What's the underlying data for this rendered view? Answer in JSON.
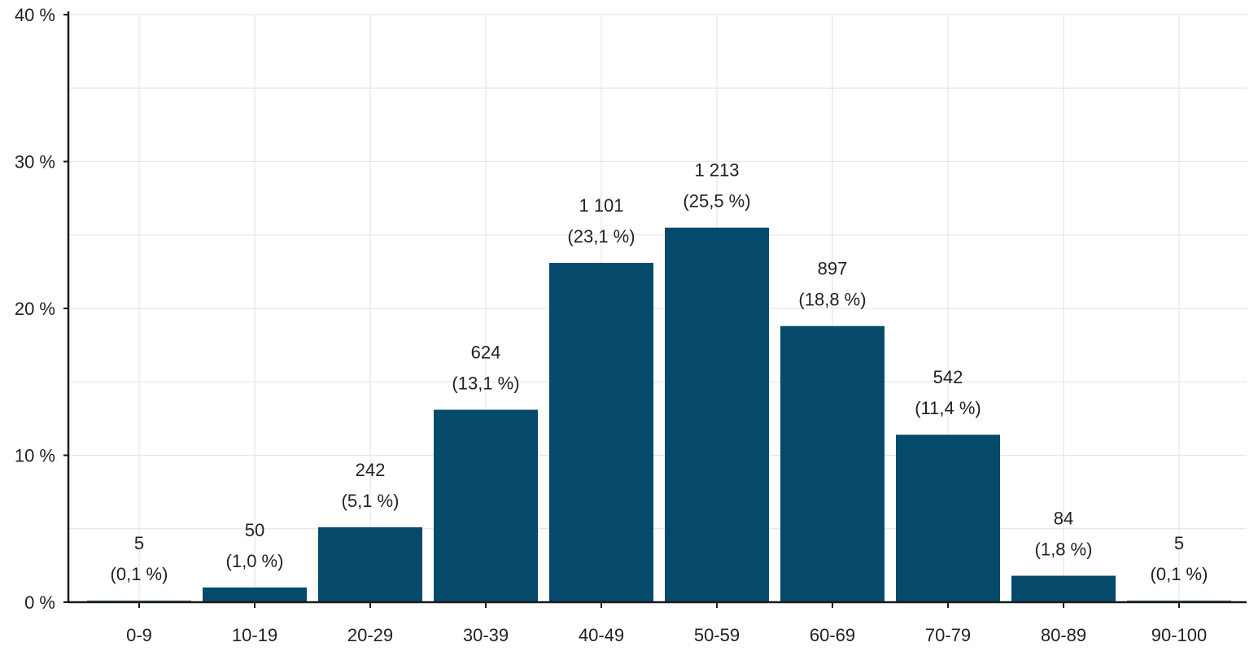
{
  "chart_data": {
    "type": "bar",
    "title": "",
    "xlabel": "",
    "ylabel": "",
    "categories": [
      "0-9",
      "10-19",
      "20-29",
      "30-39",
      "40-49",
      "50-59",
      "60-69",
      "70-79",
      "80-89",
      "90-100"
    ],
    "values": [
      0.1,
      1.0,
      5.1,
      13.1,
      23.1,
      25.5,
      18.8,
      11.4,
      1.8,
      0.1
    ],
    "counts": [
      "5",
      "50",
      "242",
      "624",
      "1 101",
      "1 213",
      "897",
      "542",
      "84",
      "5"
    ],
    "percent_labels": [
      "(0,1 %)",
      "(1,0 %)",
      "(5,1 %)",
      "(13,1 %)",
      "(23,1 %)",
      "(25,5 %)",
      "(18,8 %)",
      "(11,4 %)",
      "(1,8 %)",
      "(0,1 %)"
    ],
    "ylim": [
      0,
      40
    ],
    "y_ticks": [
      0,
      10,
      20,
      30,
      40
    ],
    "y_tick_labels": [
      "0 %",
      "10 %",
      "20 %",
      "30 %",
      "40 %"
    ],
    "grid": true,
    "colors": {
      "bar": "#054a6b",
      "axis": "#1a1a1a",
      "grid": "#e6e6e6",
      "text": "#222222"
    }
  }
}
